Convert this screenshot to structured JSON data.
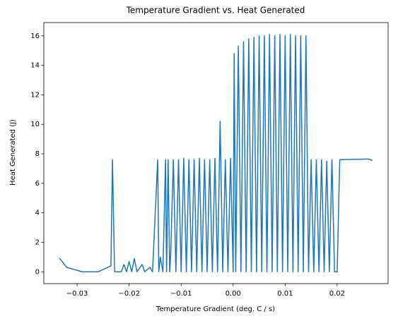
{
  "chart_data": {
    "type": "line",
    "title": "Temperature Gradient vs. Heat Generated",
    "x_label": "Temperature Gradient (deg. C / s)",
    "y_label": "Heat Generated (J)",
    "color": "#1f77b4",
    "x": [
      -0.0334,
      -0.032,
      -0.029,
      -0.026,
      -0.0235,
      -0.0232,
      -0.0228,
      -0.0215,
      -0.021,
      -0.0205,
      -0.02,
      -0.0195,
      -0.019,
      -0.0185,
      -0.0175,
      -0.017,
      -0.016,
      -0.0155,
      -0.0145,
      -0.0143,
      -0.014,
      -0.0135,
      -0.013,
      -0.0128,
      -0.0125,
      -0.0122,
      -0.012,
      -0.0115,
      -0.011,
      -0.0105,
      -0.01,
      -0.0095,
      -0.009,
      -0.0085,
      -0.008,
      -0.0075,
      -0.007,
      -0.0065,
      -0.006,
      -0.0055,
      -0.005,
      -0.0045,
      -0.004,
      -0.0035,
      -0.003,
      -0.0025,
      -0.002,
      -0.0015,
      -0.001,
      -0.0005,
      0.0,
      0.0002,
      0.0005,
      0.001,
      0.0015,
      0.002,
      0.0025,
      0.003,
      0.0035,
      0.004,
      0.0045,
      0.005,
      0.0055,
      0.006,
      0.0065,
      0.007,
      0.0075,
      0.008,
      0.0085,
      0.009,
      0.0095,
      0.01,
      0.0105,
      0.011,
      0.0115,
      0.012,
      0.0125,
      0.013,
      0.0135,
      0.014,
      0.0145,
      0.015,
      0.0155,
      0.016,
      0.0165,
      0.017,
      0.0175,
      0.018,
      0.0185,
      0.019,
      0.0195,
      0.02,
      0.0205,
      0.026,
      0.0268
    ],
    "values": [
      0.93,
      0.3,
      0,
      0,
      0.4,
      7.6,
      0,
      0,
      0.5,
      0,
      0.7,
      0,
      0.9,
      0,
      0.5,
      0,
      0.3,
      0,
      7.6,
      0,
      1.0,
      0,
      7.6,
      0,
      7.6,
      0,
      1.2,
      7.6,
      0,
      7.6,
      0,
      7.7,
      0,
      7.6,
      0,
      7.6,
      0,
      7.7,
      0,
      7.6,
      0,
      7.6,
      0,
      7.7,
      0,
      10.2,
      0,
      7.6,
      0,
      7.7,
      0,
      14.8,
      0,
      15.3,
      0,
      15.6,
      0,
      15.8,
      0,
      15.9,
      0,
      16.0,
      0,
      16.0,
      0,
      16.1,
      0,
      16.0,
      0,
      16.1,
      0,
      16.0,
      0,
      16.1,
      0,
      16.0,
      0,
      16.0,
      0,
      16.0,
      0,
      7.6,
      0,
      7.6,
      0,
      7.6,
      0,
      7.5,
      0,
      7.6,
      0,
      0,
      7.6,
      7.65,
      7.55
    ],
    "xlim": [
      -0.0364,
      0.0298
    ],
    "xticks": [
      {
        "value": -0.03,
        "label": "−0.03"
      },
      {
        "value": -0.02,
        "label": "−0.02"
      },
      {
        "value": -0.01,
        "label": "−0.01"
      },
      {
        "value": 0,
        "label": "0.00"
      },
      0.01,
      0.02
    ],
    "ylim": [
      -0.8,
      16.9
    ],
    "yticks": [
      0,
      2,
      4,
      6,
      8,
      10,
      12,
      14,
      16
    ]
  }
}
